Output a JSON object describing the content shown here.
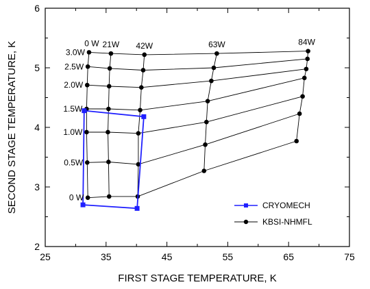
{
  "chart_data": {
    "type": "scatter",
    "title": "",
    "xlabel": "FIRST STAGE TEMPERATURE, K",
    "ylabel": "SECOND STAGE TEMPERATURE, K",
    "xlim": [
      25,
      75
    ],
    "ylim": [
      2,
      6
    ],
    "x_ticks": [
      "25",
      "35",
      "45",
      "55",
      "65",
      "75"
    ],
    "y_ticks": [
      "2",
      "3",
      "4",
      "5",
      "6"
    ],
    "grid": false,
    "legend_position": "bottom-right",
    "colors": {
      "cryomech": "#1f1fff",
      "kbsi": "#000000"
    },
    "second_stage_labels": [
      "3.0W",
      "2.5W",
      "2.0W",
      "1.5W",
      "1.0W",
      "0.5W",
      "0 W"
    ],
    "first_stage_labels": [
      "0 W",
      "21W",
      "42W",
      "63W",
      "84W"
    ],
    "series": [
      {
        "name": "CRYOMECH",
        "marker": "square",
        "points": [
          [
            31.4,
            4.28
          ],
          [
            41.2,
            4.18
          ],
          [
            40.1,
            2.64
          ],
          [
            31.2,
            2.7
          ],
          [
            31.4,
            4.28
          ]
        ]
      },
      {
        "name": "KBSI-NHMFL",
        "marker": "circle",
        "grid_points": [
          [
            [
              32.2,
              5.26
            ],
            [
              35.8,
              5.24
            ],
            [
              41.3,
              5.22
            ],
            [
              53.2,
              5.24
            ],
            [
              68.2,
              5.28
            ]
          ],
          [
            [
              32.0,
              5.02
            ],
            [
              35.6,
              4.99
            ],
            [
              41.1,
              4.96
            ],
            [
              52.7,
              5.0
            ],
            [
              68.1,
              5.15
            ]
          ],
          [
            [
              31.9,
              4.71
            ],
            [
              35.5,
              4.69
            ],
            [
              40.8,
              4.67
            ],
            [
              52.3,
              4.78
            ],
            [
              67.9,
              4.98
            ]
          ],
          [
            [
              31.8,
              4.31
            ],
            [
              35.4,
              4.31
            ],
            [
              40.6,
              4.29
            ],
            [
              51.7,
              4.44
            ],
            [
              67.6,
              4.83
            ]
          ],
          [
            [
              31.8,
              3.92
            ],
            [
              35.3,
              3.92
            ],
            [
              40.3,
              3.9
            ],
            [
              51.5,
              4.09
            ],
            [
              67.3,
              4.52
            ]
          ],
          [
            [
              31.9,
              3.41
            ],
            [
              35.4,
              3.42
            ],
            [
              40.3,
              3.38
            ],
            [
              51.3,
              3.71
            ],
            [
              66.8,
              4.23
            ]
          ],
          [
            [
              32.0,
              2.82
            ],
            [
              35.5,
              2.84
            ],
            [
              40.2,
              2.84
            ],
            [
              51.1,
              3.27
            ],
            [
              66.3,
              3.77
            ]
          ]
        ]
      }
    ]
  }
}
